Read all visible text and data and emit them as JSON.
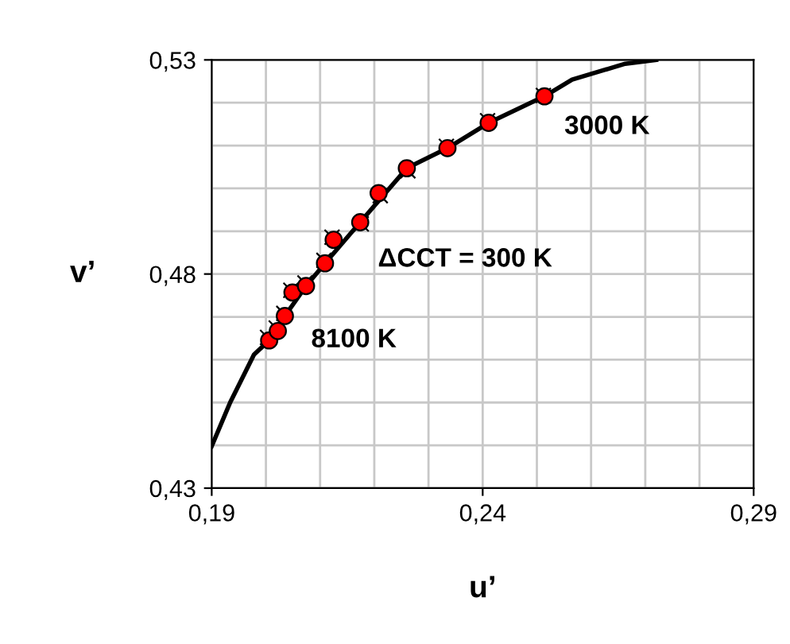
{
  "chart_data": {
    "type": "scatter",
    "xlabel": "u’",
    "ylabel": "v’",
    "xlim": [
      0.19,
      0.29
    ],
    "ylim": [
      0.43,
      0.53
    ],
    "xticks": [
      {
        "value": 0.19,
        "label": "0,19"
      },
      {
        "value": 0.2,
        "label": null
      },
      {
        "value": 0.21,
        "label": null
      },
      {
        "value": 0.22,
        "label": null
      },
      {
        "value": 0.23,
        "label": null
      },
      {
        "value": 0.24,
        "label": "0,24"
      },
      {
        "value": 0.25,
        "label": null
      },
      {
        "value": 0.26,
        "label": null
      },
      {
        "value": 0.27,
        "label": null
      },
      {
        "value": 0.28,
        "label": null
      },
      {
        "value": 0.29,
        "label": "0,29"
      }
    ],
    "yticks": [
      {
        "value": 0.43,
        "label": "0,43"
      },
      {
        "value": 0.44,
        "label": null
      },
      {
        "value": 0.45,
        "label": null
      },
      {
        "value": 0.46,
        "label": null
      },
      {
        "value": 0.47,
        "label": null
      },
      {
        "value": 0.48,
        "label": "0,48"
      },
      {
        "value": 0.49,
        "label": null
      },
      {
        "value": 0.5,
        "label": null
      },
      {
        "value": 0.51,
        "label": null
      },
      {
        "value": 0.52,
        "label": null
      },
      {
        "value": 0.53,
        "label": "0,53"
      }
    ],
    "grid": true,
    "legend": false,
    "series": [
      {
        "type": "line",
        "color": "#000000",
        "marker": "none",
        "x": [
          0.19,
          0.1934,
          0.1978,
          0.2006,
          0.2035,
          0.2074,
          0.2109,
          0.2174,
          0.226,
          0.2335,
          0.2411,
          0.2514,
          0.2565,
          0.2663,
          0.272
        ],
        "values": [
          0.4398,
          0.45,
          0.4612,
          0.4645,
          0.4702,
          0.4772,
          0.4825,
          0.4921,
          0.5047,
          0.5094,
          0.5153,
          0.5215,
          0.5254,
          0.5291,
          0.53
        ]
      },
      {
        "color": "#000000",
        "marker": "cross",
        "x": [
          0.2003,
          0.2019,
          0.2033,
          0.2046,
          0.2072,
          0.2107,
          0.2122,
          0.2176,
          0.2211,
          0.2262,
          0.2333,
          0.2409,
          0.2512
        ],
        "values": [
          0.4652,
          0.4674,
          0.4708,
          0.4762,
          0.4779,
          0.4832,
          0.4886,
          0.4917,
          0.4983,
          0.5041,
          0.5098,
          0.5158,
          0.5217
        ]
      },
      {
        "color": "#ff0000",
        "marker": "circle",
        "x": [
          0.2006,
          0.2022,
          0.2035,
          0.2049,
          0.2074,
          0.2109,
          0.2125,
          0.2174,
          0.2208,
          0.226,
          0.2335,
          0.2411,
          0.2514
        ],
        "values": [
          0.4645,
          0.4667,
          0.4702,
          0.4757,
          0.4772,
          0.4825,
          0.488,
          0.4921,
          0.4989,
          0.5047,
          0.5094,
          0.5153,
          0.5215
        ]
      }
    ],
    "annotations": [
      {
        "text": "3000 K",
        "x": 0.2514,
        "y": 0.5215
      },
      {
        "text": "ΔCCT = 300 K",
        "x": 0.2174,
        "y": 0.4921
      },
      {
        "text": "8100 K",
        "x": 0.2006,
        "y": 0.4645
      }
    ]
  }
}
